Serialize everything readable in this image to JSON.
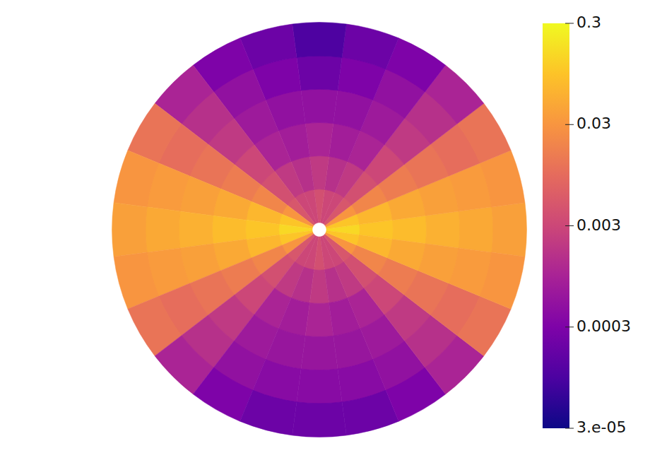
{
  "chart_data": {
    "type": "polar_heatmap",
    "log": true,
    "colorbar_lim": [
      3e-05,
      0.3
    ],
    "colorbar_ticks": [
      {
        "value": 3e-05,
        "label": "3.e-05"
      },
      0.0003,
      0.003,
      0.03,
      0.3
    ],
    "cells": [
      [
        0.15,
        0.1,
        0.03,
        0.005,
        0.003,
        0.003,
        0.004,
        0.003,
        0.003,
        0.005,
        0.03,
        0.1,
        0.15,
        0.1,
        0.03,
        0.005,
        0.003,
        0.003,
        0.004,
        0.003,
        0.003,
        0.005,
        0.03,
        0.1
      ],
      [
        0.1,
        0.07,
        0.02,
        0.004,
        0.002,
        0.0015,
        0.002,
        0.0015,
        0.002,
        0.004,
        0.02,
        0.07,
        0.1,
        0.07,
        0.02,
        0.004,
        0.002,
        0.0015,
        0.002,
        0.0015,
        0.002,
        0.004,
        0.02,
        0.07
      ],
      [
        0.08,
        0.05,
        0.015,
        0.003,
        0.001,
        0.0008,
        0.001,
        0.0008,
        0.001,
        0.003,
        0.015,
        0.05,
        0.08,
        0.05,
        0.015,
        0.003,
        0.001,
        0.0008,
        0.001,
        0.0008,
        0.001,
        0.003,
        0.015,
        0.05
      ],
      [
        0.06,
        0.04,
        0.012,
        0.002,
        0.0007,
        0.0005,
        0.0005,
        0.0005,
        0.0007,
        0.002,
        0.012,
        0.04,
        0.06,
        0.04,
        0.012,
        0.002,
        0.0007,
        0.0006,
        0.0006,
        0.0006,
        0.0007,
        0.002,
        0.012,
        0.04
      ],
      [
        0.05,
        0.035,
        0.01,
        0.0015,
        0.0005,
        0.0003,
        0.0002,
        0.0003,
        0.0005,
        0.0015,
        0.01,
        0.035,
        0.05,
        0.035,
        0.01,
        0.0015,
        0.0005,
        0.0004,
        0.0004,
        0.0004,
        0.0005,
        0.0015,
        0.01,
        0.035
      ],
      [
        0.04,
        0.03,
        0.012,
        0.001,
        0.0003,
        0.0002,
        0.0001,
        0.0002,
        0.0003,
        0.001,
        0.012,
        0.03,
        0.04,
        0.03,
        0.012,
        0.001,
        0.0003,
        0.0002,
        0.0002,
        0.0002,
        0.0003,
        0.001,
        0.012,
        0.03
      ]
    ]
  }
}
